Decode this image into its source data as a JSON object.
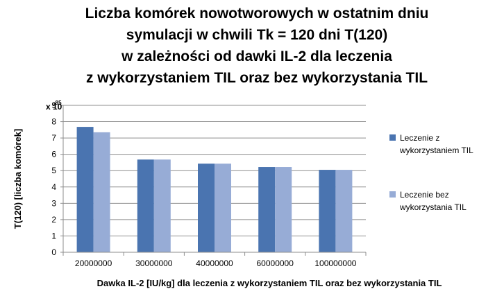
{
  "chart_data": {
    "type": "bar",
    "title_lines": [
      "Liczba komórek nowotworowych  w ostatnim dniu",
      "symulacji w chwili Tk = 120 dni T(120)",
      "w zależności od dawki IL-2 dla leczenia",
      "z wykorzystaniem  TIL oraz bez wykorzystania  TIL"
    ],
    "xlabel": "Dawka IL-2 [IU/kg] dla leczenia z wykorzystaniem TIL oraz bez wykorzystania TIL",
    "ylabel": "T(120) [liczba komórek]",
    "y_multiplier": {
      "base": "x 10",
      "exponent": "-85"
    },
    "categories": [
      "20000000",
      "30000000",
      "40000000",
      "60000000",
      "100000000"
    ],
    "ylim": [
      0,
      9
    ],
    "yticks": [
      0,
      1,
      2,
      3,
      4,
      5,
      6,
      7,
      8,
      9
    ],
    "grid": true,
    "legend_position": "right",
    "series": [
      {
        "name": "Leczenie z wykorzystaniem TIL",
        "color": "#4A74B0",
        "values": [
          7.68,
          5.68,
          5.43,
          5.22,
          5.05
        ]
      },
      {
        "name": "Leczenie bez wykorzystania TIL",
        "color": "#97ACD6",
        "values": [
          7.35,
          5.68,
          5.43,
          5.22,
          5.05
        ]
      }
    ]
  }
}
